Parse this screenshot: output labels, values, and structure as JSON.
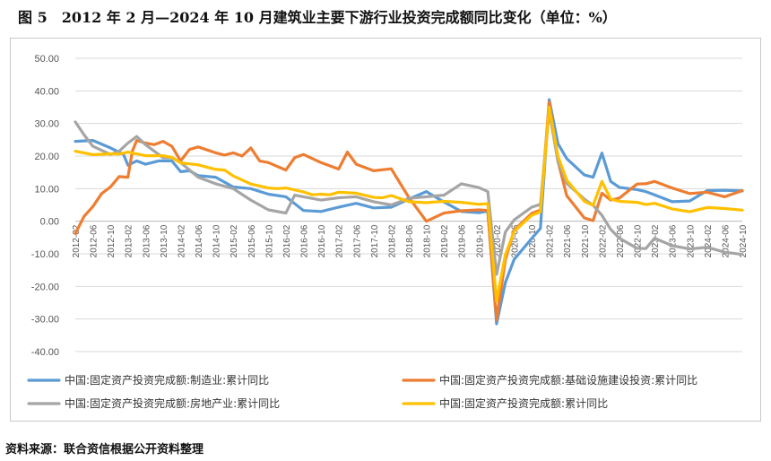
{
  "title": "图 5　2012 年 2 月—2024 年 10 月建筑业主要下游行业投资完成额同比变化（单位：%）",
  "source": "资料来源：联合资信根据公开资料整理",
  "chart_data": {
    "type": "line",
    "title": "图 5　2012 年 2 月—2024 年 10 月建筑业主要下游行业投资完成额同比变化（单位：%）",
    "ylim": [
      -40,
      50
    ],
    "yticks": [
      "50.00",
      "40.00",
      "30.00",
      "20.00",
      "10.00",
      "0.00",
      "-10.00",
      "-20.00",
      "-30.00",
      "-40.00"
    ],
    "ytick_values": [
      50,
      40,
      30,
      20,
      10,
      0,
      -10,
      -20,
      -30,
      -40
    ],
    "xticks": [
      "2012-02",
      "2012-06",
      "2012-10",
      "2013-02",
      "2013-06",
      "2013-10",
      "2014-02",
      "2014-06",
      "2014-10",
      "2015-02",
      "2015-06",
      "2015-10",
      "2016-02",
      "2016-06",
      "2016-10",
      "2017-02",
      "2017-06",
      "2017-10",
      "2018-02",
      "2018-06",
      "2018-10",
      "2019-02",
      "2019-06",
      "2019-10",
      "2020-02",
      "2020-06",
      "2020-10",
      "2021-02",
      "2021-06",
      "2021-10",
      "2022-02",
      "2022-06",
      "2022-10",
      "2023-02",
      "2023-06",
      "2023-10",
      "2024-02",
      "2024-06",
      "2024-10"
    ],
    "x_start": "2012-02",
    "x_end": "2024-10",
    "grid": true,
    "legend_position": "bottom",
    "series": [
      {
        "name": "中国:固定资产投资完成额:制造业:累计同比",
        "color": "#5B9BD5",
        "points": [
          [
            "2012-02",
            24.5
          ],
          [
            "2012-06",
            24.8
          ],
          [
            "2012-10",
            22.5
          ],
          [
            "2013-01",
            20.5
          ],
          [
            "2013-02",
            17.2
          ],
          [
            "2013-04",
            18.5
          ],
          [
            "2013-06",
            17.5
          ],
          [
            "2013-09",
            18.5
          ],
          [
            "2013-12",
            18.5
          ],
          [
            "2014-02",
            15.2
          ],
          [
            "2014-04",
            15.5
          ],
          [
            "2014-06",
            14.0
          ],
          [
            "2014-10",
            13.5
          ],
          [
            "2015-02",
            10.5
          ],
          [
            "2015-06",
            10.0
          ],
          [
            "2015-10",
            8.3
          ],
          [
            "2016-02",
            7.5
          ],
          [
            "2016-06",
            3.3
          ],
          [
            "2016-10",
            3.0
          ],
          [
            "2017-02",
            4.3
          ],
          [
            "2017-06",
            5.5
          ],
          [
            "2017-10",
            4.1
          ],
          [
            "2018-02",
            4.3
          ],
          [
            "2018-06",
            6.8
          ],
          [
            "2018-10",
            9.1
          ],
          [
            "2019-02",
            5.9
          ],
          [
            "2019-06",
            3.0
          ],
          [
            "2019-10",
            2.6
          ],
          [
            "2019-12",
            3.1
          ],
          [
            "2020-02",
            -31.5
          ],
          [
            "2020-04",
            -18.8
          ],
          [
            "2020-06",
            -11.7
          ],
          [
            "2020-10",
            -5.3
          ],
          [
            "2020-12",
            -2.2
          ],
          [
            "2021-02",
            37.3
          ],
          [
            "2021-04",
            23.8
          ],
          [
            "2021-06",
            19.2
          ],
          [
            "2021-10",
            14.2
          ],
          [
            "2021-12",
            13.5
          ],
          [
            "2022-02",
            20.9
          ],
          [
            "2022-04",
            12.2
          ],
          [
            "2022-06",
            10.4
          ],
          [
            "2022-10",
            9.7
          ],
          [
            "2022-12",
            9.1
          ],
          [
            "2023-02",
            8.1
          ],
          [
            "2023-06",
            6.0
          ],
          [
            "2023-10",
            6.2
          ],
          [
            "2024-02",
            9.4
          ],
          [
            "2024-06",
            9.5
          ],
          [
            "2024-10",
            9.3
          ]
        ]
      },
      {
        "name": "中国:固定资产投资完成额:基础设施建设投资:累计同比",
        "color": "#ED7D31",
        "points": [
          [
            "2012-02",
            -3.8
          ],
          [
            "2012-04",
            1.5
          ],
          [
            "2012-06",
            4.5
          ],
          [
            "2012-08",
            8.5
          ],
          [
            "2012-10",
            10.5
          ],
          [
            "2012-12",
            13.7
          ],
          [
            "2013-02",
            13.5
          ],
          [
            "2013-03",
            21.5
          ],
          [
            "2013-04",
            24.8
          ],
          [
            "2013-06",
            24.0
          ],
          [
            "2013-08",
            23.5
          ],
          [
            "2013-10",
            24.5
          ],
          [
            "2013-12",
            23.0
          ],
          [
            "2014-02",
            18.5
          ],
          [
            "2014-04",
            22.0
          ],
          [
            "2014-06",
            22.8
          ],
          [
            "2014-10",
            21.0
          ],
          [
            "2014-12",
            20.3
          ],
          [
            "2015-02",
            21.0
          ],
          [
            "2015-04",
            20.0
          ],
          [
            "2015-06",
            22.5
          ],
          [
            "2015-08",
            18.5
          ],
          [
            "2015-10",
            18.0
          ],
          [
            "2016-02",
            15.7
          ],
          [
            "2016-04",
            19.5
          ],
          [
            "2016-06",
            20.5
          ],
          [
            "2016-10",
            18.0
          ],
          [
            "2017-02",
            16.0
          ],
          [
            "2017-04",
            21.2
          ],
          [
            "2017-06",
            17.5
          ],
          [
            "2017-10",
            15.5
          ],
          [
            "2018-02",
            16.1
          ],
          [
            "2018-06",
            7.3
          ],
          [
            "2018-10",
            0.0
          ],
          [
            "2019-02",
            2.5
          ],
          [
            "2019-06",
            3.2
          ],
          [
            "2019-10",
            3.5
          ],
          [
            "2019-12",
            3.3
          ],
          [
            "2020-02",
            -30.3
          ],
          [
            "2020-04",
            -11.8
          ],
          [
            "2020-06",
            -2.7
          ],
          [
            "2020-10",
            2.4
          ],
          [
            "2020-12",
            3.4
          ],
          [
            "2021-02",
            36.6
          ],
          [
            "2021-04",
            18.4
          ],
          [
            "2021-06",
            7.8
          ],
          [
            "2021-10",
            1.0
          ],
          [
            "2021-12",
            0.2
          ],
          [
            "2022-02",
            8.6
          ],
          [
            "2022-04",
            6.5
          ],
          [
            "2022-06",
            7.1
          ],
          [
            "2022-10",
            11.4
          ],
          [
            "2022-12",
            11.5
          ],
          [
            "2023-02",
            12.2
          ],
          [
            "2023-06",
            10.2
          ],
          [
            "2023-10",
            8.5
          ],
          [
            "2024-02",
            8.9
          ],
          [
            "2024-06",
            7.5
          ],
          [
            "2024-10",
            9.4
          ]
        ]
      },
      {
        "name": "中国:固定资产投资完成额:房地产业:累计同比",
        "color": "#A5A5A5",
        "points": [
          [
            "2012-02",
            30.5
          ],
          [
            "2012-04",
            26.5
          ],
          [
            "2012-06",
            23.0
          ],
          [
            "2012-10",
            20.5
          ],
          [
            "2012-12",
            21.5
          ],
          [
            "2013-02",
            24.0
          ],
          [
            "2013-04",
            26.0
          ],
          [
            "2013-06",
            23.5
          ],
          [
            "2013-10",
            19.5
          ],
          [
            "2013-12",
            19.5
          ],
          [
            "2014-02",
            18.0
          ],
          [
            "2014-06",
            13.5
          ],
          [
            "2014-10",
            11.5
          ],
          [
            "2015-02",
            10.0
          ],
          [
            "2015-06",
            6.5
          ],
          [
            "2015-10",
            3.5
          ],
          [
            "2016-02",
            2.5
          ],
          [
            "2016-04",
            8.0
          ],
          [
            "2016-06",
            7.5
          ],
          [
            "2016-10",
            6.5
          ],
          [
            "2017-02",
            7.2
          ],
          [
            "2017-06",
            7.5
          ],
          [
            "2017-10",
            6.0
          ],
          [
            "2018-02",
            5.0
          ],
          [
            "2018-06",
            7.0
          ],
          [
            "2018-10",
            7.5
          ],
          [
            "2019-02",
            8.0
          ],
          [
            "2019-06",
            11.5
          ],
          [
            "2019-10",
            10.3
          ],
          [
            "2019-12",
            9.1
          ],
          [
            "2020-02",
            -16.3
          ],
          [
            "2020-04",
            -3.3
          ],
          [
            "2020-06",
            0.4
          ],
          [
            "2020-10",
            4.3
          ],
          [
            "2020-12",
            5.2
          ],
          [
            "2021-02",
            33.7
          ],
          [
            "2021-04",
            18.3
          ],
          [
            "2021-06",
            11.6
          ],
          [
            "2021-10",
            6.8
          ],
          [
            "2021-12",
            4.9
          ],
          [
            "2022-02",
            1.8
          ],
          [
            "2022-04",
            -2.5
          ],
          [
            "2022-06",
            -5.2
          ],
          [
            "2022-10",
            -8.3
          ],
          [
            "2022-12",
            -8.4
          ],
          [
            "2023-02",
            -5.2
          ],
          [
            "2023-06",
            -7.5
          ],
          [
            "2023-10",
            -8.5
          ],
          [
            "2024-02",
            -8.0
          ],
          [
            "2024-06",
            -9.5
          ],
          [
            "2024-10",
            -10.2
          ]
        ]
      },
      {
        "name": "中国:固定资产投资完成额:累计同比",
        "color": "#FFC000",
        "points": [
          [
            "2012-02",
            21.5
          ],
          [
            "2012-06",
            20.4
          ],
          [
            "2012-10",
            20.7
          ],
          [
            "2012-12",
            20.6
          ],
          [
            "2013-02",
            21.2
          ],
          [
            "2013-06",
            20.1
          ],
          [
            "2013-10",
            20.1
          ],
          [
            "2013-12",
            19.6
          ],
          [
            "2014-02",
            17.9
          ],
          [
            "2014-06",
            17.3
          ],
          [
            "2014-10",
            15.9
          ],
          [
            "2014-12",
            15.7
          ],
          [
            "2015-02",
            13.9
          ],
          [
            "2015-06",
            11.4
          ],
          [
            "2015-10",
            10.2
          ],
          [
            "2015-12",
            10.0
          ],
          [
            "2016-02",
            10.2
          ],
          [
            "2016-06",
            9.0
          ],
          [
            "2016-08",
            8.1
          ],
          [
            "2016-10",
            8.3
          ],
          [
            "2016-12",
            8.1
          ],
          [
            "2017-02",
            8.9
          ],
          [
            "2017-06",
            8.6
          ],
          [
            "2017-10",
            7.3
          ],
          [
            "2017-12",
            7.2
          ],
          [
            "2018-02",
            7.9
          ],
          [
            "2018-06",
            6.0
          ],
          [
            "2018-10",
            5.7
          ],
          [
            "2018-12",
            5.9
          ],
          [
            "2019-02",
            6.1
          ],
          [
            "2019-06",
            5.8
          ],
          [
            "2019-10",
            5.2
          ],
          [
            "2019-12",
            5.4
          ],
          [
            "2020-02",
            -24.5
          ],
          [
            "2020-04",
            -10.3
          ],
          [
            "2020-06",
            -3.1
          ],
          [
            "2020-10",
            1.8
          ],
          [
            "2020-12",
            2.9
          ],
          [
            "2021-02",
            35.0
          ],
          [
            "2021-04",
            19.9
          ],
          [
            "2021-06",
            12.6
          ],
          [
            "2021-10",
            6.1
          ],
          [
            "2021-12",
            4.9
          ],
          [
            "2022-02",
            12.2
          ],
          [
            "2022-04",
            6.8
          ],
          [
            "2022-06",
            6.1
          ],
          [
            "2022-10",
            5.8
          ],
          [
            "2022-12",
            5.1
          ],
          [
            "2023-02",
            5.5
          ],
          [
            "2023-06",
            3.8
          ],
          [
            "2023-10",
            2.9
          ],
          [
            "2024-02",
            4.2
          ],
          [
            "2024-06",
            3.9
          ],
          [
            "2024-10",
            3.4
          ]
        ]
      }
    ]
  }
}
